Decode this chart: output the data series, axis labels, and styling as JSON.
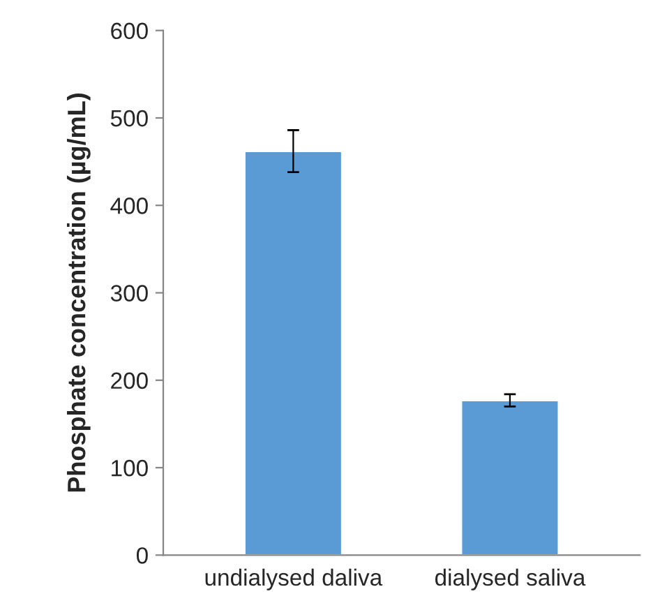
{
  "chart_data": {
    "type": "bar",
    "ylabel": "Phosphate concentration (µg/mL)",
    "categories": [
      "undialysed daliva",
      "dialysed saliva"
    ],
    "values": [
      462,
      177
    ],
    "errors": [
      24,
      7
    ],
    "color": "#5b9bd5",
    "ylim": [
      0,
      600
    ],
    "yticks": [
      0,
      100,
      200,
      300,
      400,
      500,
      600
    ],
    "grid": false
  }
}
